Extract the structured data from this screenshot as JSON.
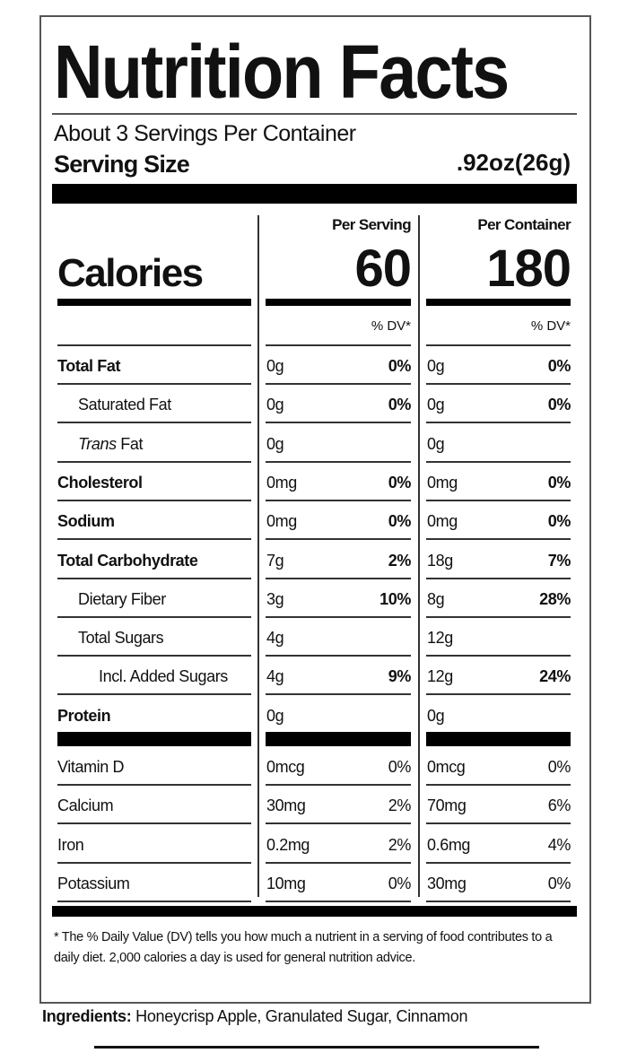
{
  "title": "Nutrition Facts",
  "servings_per_container": "About 3 Servings Per Container",
  "serving_size_label": "Serving Size",
  "serving_size_value": ".92oz(26g)",
  "columns": {
    "per_serving": "Per Serving",
    "per_container": "Per Container",
    "dv_header": "% DV*"
  },
  "calories": {
    "label": "Calories",
    "per_serving": "60",
    "per_container": "180"
  },
  "nutrients": [
    {
      "label": "Total Fat",
      "bold": true,
      "indent": 0,
      "ps_amount": "0g",
      "ps_dv": "0%",
      "pc_amount": "0g",
      "pc_dv": "0%"
    },
    {
      "label": "Saturated Fat",
      "bold": false,
      "indent": 1,
      "ps_amount": "0g",
      "ps_dv": "0%",
      "pc_amount": "0g",
      "pc_dv": "0%"
    },
    {
      "italic_prefix": "Trans",
      "label": " Fat",
      "bold": false,
      "indent": 1,
      "ps_amount": "0g",
      "ps_dv": "",
      "pc_amount": "0g",
      "pc_dv": ""
    },
    {
      "label": "Cholesterol",
      "bold": true,
      "indent": 0,
      "ps_amount": "0mg",
      "ps_dv": "0%",
      "pc_amount": "0mg",
      "pc_dv": "0%"
    },
    {
      "label": "Sodium",
      "bold": true,
      "indent": 0,
      "ps_amount": "0mg",
      "ps_dv": "0%",
      "pc_amount": "0mg",
      "pc_dv": "0%"
    },
    {
      "label": "Total Carbohydrate",
      "bold": true,
      "indent": 0,
      "ps_amount": "7g",
      "ps_dv": "2%",
      "pc_amount": "18g",
      "pc_dv": "7%"
    },
    {
      "label": "Dietary Fiber",
      "bold": false,
      "indent": 1,
      "ps_amount": "3g",
      "ps_dv": "10%",
      "pc_amount": "8g",
      "pc_dv": "28%"
    },
    {
      "label": "Total Sugars",
      "bold": false,
      "indent": 1,
      "ps_amount": "4g",
      "ps_dv": "",
      "pc_amount": "12g",
      "pc_dv": ""
    },
    {
      "label": "Incl. Added Sugars",
      "bold": false,
      "indent": 2,
      "ps_amount": "4g",
      "ps_dv": "9%",
      "pc_amount": "12g",
      "pc_dv": "24%"
    },
    {
      "label": "Protein",
      "bold": true,
      "indent": 0,
      "ps_amount": "0g",
      "ps_dv": "",
      "pc_amount": "0g",
      "pc_dv": ""
    }
  ],
  "vitamins": [
    {
      "label": "Vitamin D",
      "ps_amount": "0mcg",
      "ps_dv": "0%",
      "pc_amount": "0mcg",
      "pc_dv": "0%"
    },
    {
      "label": "Calcium",
      "ps_amount": "30mg",
      "ps_dv": "2%",
      "pc_amount": "70mg",
      "pc_dv": "6%"
    },
    {
      "label": "Iron",
      "ps_amount": "0.2mg",
      "ps_dv": "2%",
      "pc_amount": "0.6mg",
      "pc_dv": "4%"
    },
    {
      "label": "Potassium",
      "ps_amount": "10mg",
      "ps_dv": "0%",
      "pc_amount": "30mg",
      "pc_dv": "0%"
    }
  ],
  "footnote": "* The % Daily Value (DV) tells you how much a nutrient in a serving of food contributes to a daily diet. 2,000 calories a day is used for general nutrition advice.",
  "ingredients": {
    "label": "Ingredients:",
    "text": " Honeycrisp Apple, Granulated Sugar, Cinnamon"
  }
}
